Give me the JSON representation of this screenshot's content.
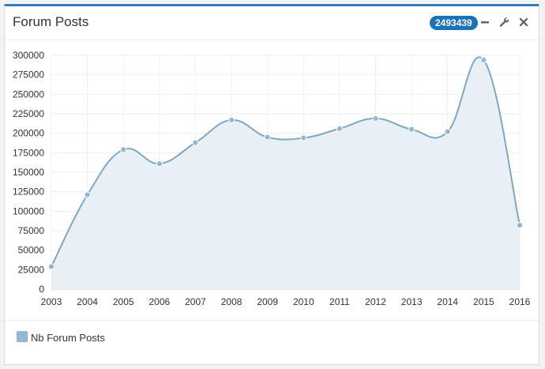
{
  "widget": {
    "title": "Forum Posts",
    "badge": "2493439",
    "tools": {
      "minimize": "minimize-icon",
      "settings": "wrench-icon",
      "close": "close-icon"
    }
  },
  "colors": {
    "header_accent": "#2f7fbf",
    "badge_bg": "#1b72b8",
    "series_line": "#7fa8c2",
    "series_fill": "#e8f0f5",
    "point_fill": "#93b8cf",
    "legend_swatch": "#93b8cf"
  },
  "chart_data": {
    "type": "area",
    "x": [
      "2003",
      "2004",
      "2005",
      "2006",
      "2007",
      "2008",
      "2009",
      "2010",
      "2011",
      "2012",
      "2013",
      "2014",
      "2015",
      "2016"
    ],
    "series": [
      {
        "name": "Nb Forum Posts",
        "values": [
          29000,
          121000,
          179000,
          161000,
          188000,
          217000,
          195000,
          194000,
          206000,
          219000,
          205000,
          202000,
          294000,
          82000
        ]
      }
    ],
    "y_ticks": [
      0,
      25000,
      50000,
      75000,
      100000,
      125000,
      150000,
      175000,
      200000,
      225000,
      250000,
      275000,
      300000
    ],
    "ylim": [
      0,
      300000
    ],
    "grid": true,
    "smooth": true,
    "markers": true,
    "legend_position": "bottom-left"
  }
}
